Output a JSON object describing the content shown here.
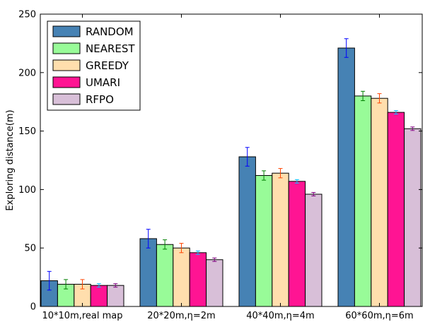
{
  "chart_data": {
    "type": "bar",
    "title": "",
    "xlabel": "",
    "ylabel": "Exploring distance(m)",
    "ylim": [
      0,
      250
    ],
    "yticks": [
      "0",
      "50",
      "100",
      "150",
      "200",
      "250"
    ],
    "categories": [
      "10*10m,real map",
      "20*20m,η=2m",
      "40*40m,η=4m",
      "60*60m,η=6m"
    ],
    "legend_position": "top-left",
    "series": [
      {
        "name": "RANDOM",
        "fill": "#4682b4",
        "error_color": "#0000ff",
        "values": [
          22,
          58,
          128,
          221
        ],
        "errors": [
          8,
          8,
          8,
          8
        ]
      },
      {
        "name": "NEAREST",
        "fill": "#98fb98",
        "error_color": "#008000",
        "values": [
          19,
          53,
          112,
          180
        ],
        "errors": [
          4,
          4,
          4,
          4
        ]
      },
      {
        "name": "GREEDY",
        "fill": "#ffdead",
        "error_color": "#ff4500",
        "values": [
          19,
          50,
          114,
          178
        ],
        "errors": [
          4,
          4,
          4,
          4
        ]
      },
      {
        "name": "UMARI",
        "fill": "#ff1493",
        "error_color": "#00bfff",
        "values": [
          18,
          46,
          107,
          166
        ],
        "errors": [
          1.5,
          1.5,
          1.5,
          1.5
        ]
      },
      {
        "name": "RFPO",
        "fill": "#d8bfd8",
        "error_color": "#800080",
        "values": [
          18,
          40,
          96,
          152
        ],
        "errors": [
          1.5,
          1.5,
          1.5,
          1.5
        ]
      }
    ]
  }
}
